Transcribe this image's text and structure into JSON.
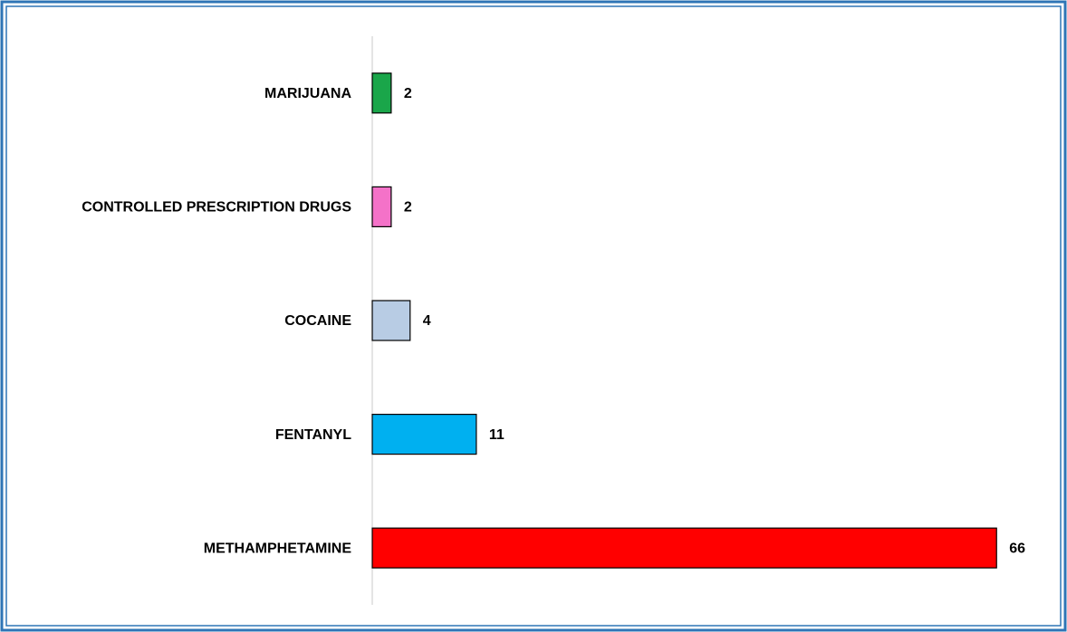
{
  "chart_data": {
    "type": "bar",
    "orientation": "horizontal",
    "categories": [
      "MARIJUANA",
      "CONTROLLED PRESCRIPTION DRUGS",
      "COCAINE",
      "FENTANYL",
      "METHAMPHETAMINE"
    ],
    "values": [
      2,
      2,
      4,
      11,
      66
    ],
    "colors": [
      "#1aa64a",
      "#f472c8",
      "#b8cce4",
      "#00b0f0",
      "#ff0000"
    ],
    "xlim": [
      0,
      70
    ]
  }
}
